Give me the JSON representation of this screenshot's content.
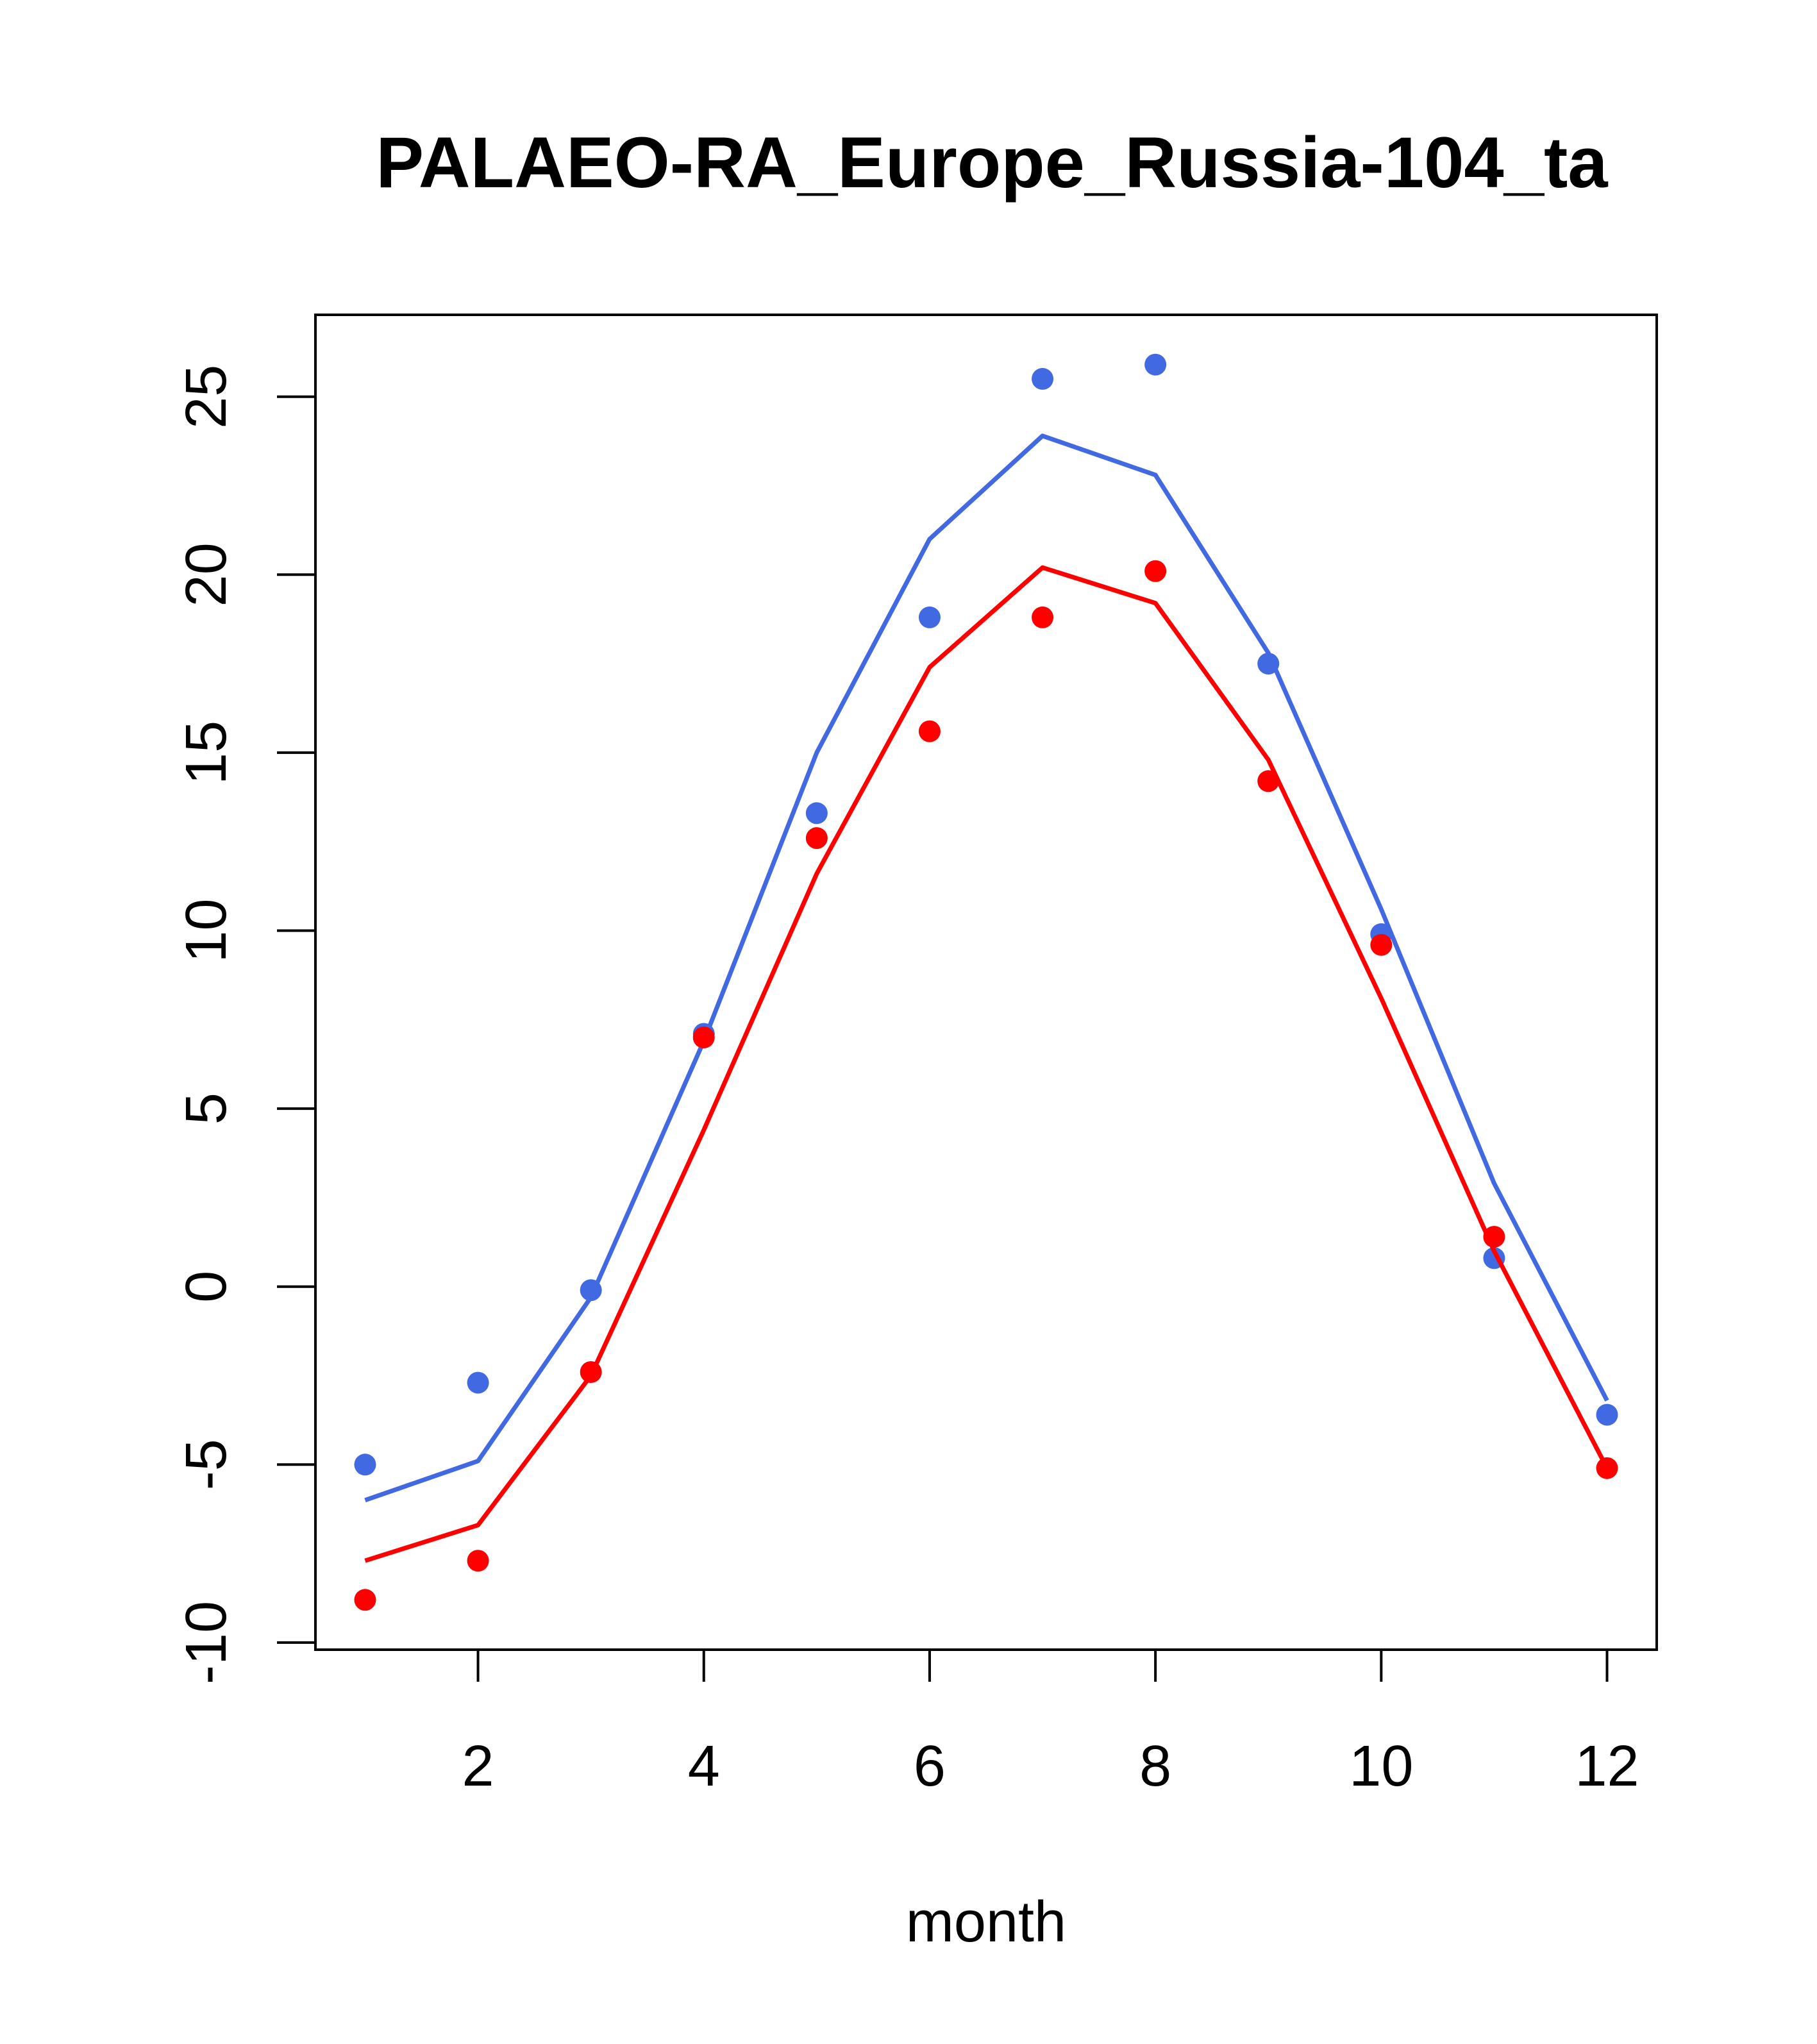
{
  "chart_data": {
    "type": "line",
    "title": "PALAEO-RA_Europe_Russia-104_ta",
    "xlabel": "month",
    "ylabel": "",
    "xlim": [
      0.56,
      12.44
    ],
    "ylim": [
      -10.2,
      27.3
    ],
    "x_ticks": [
      2,
      4,
      6,
      8,
      10,
      12
    ],
    "y_ticks": [
      -10,
      -5,
      0,
      5,
      10,
      15,
      20,
      25
    ],
    "grid": false,
    "legend": "none",
    "x": [
      1,
      2,
      3,
      4,
      5,
      6,
      7,
      8,
      9,
      10,
      11,
      12
    ],
    "series": [
      {
        "color": "#4169e1",
        "line_values": [
          -6.0,
          -4.9,
          -0.3,
          6.9,
          15.0,
          21.0,
          23.9,
          22.8,
          17.8,
          10.6,
          2.9,
          -3.2
        ],
        "point_values": [
          -5.0,
          -2.7,
          -0.1,
          7.1,
          13.3,
          18.8,
          25.5,
          25.9,
          17.5,
          9.9,
          0.8,
          -3.6
        ]
      },
      {
        "color": "#ff0000",
        "line_values": [
          -7.7,
          -6.7,
          -2.5,
          4.4,
          11.6,
          17.4,
          20.2,
          19.2,
          14.8,
          8.1,
          1.0,
          -5.1
        ],
        "point_values": [
          -8.8,
          -7.7,
          -2.4,
          7.0,
          12.6,
          15.6,
          18.8,
          20.1,
          14.2,
          9.6,
          1.4,
          -5.1
        ]
      }
    ]
  }
}
